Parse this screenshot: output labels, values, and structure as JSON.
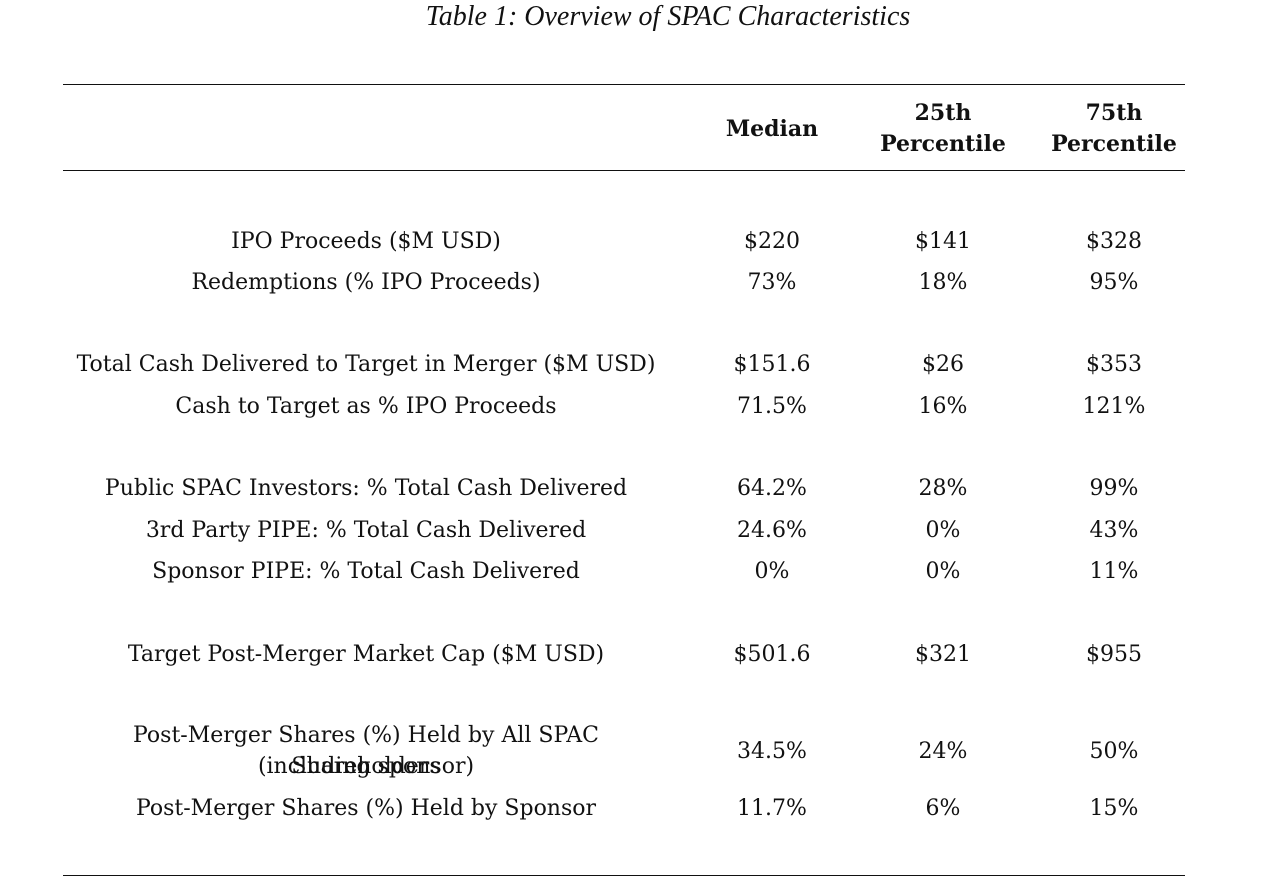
{
  "caption": "Table 1: Overview of SPAC Characteristics",
  "columns": {
    "median": "Median",
    "p25_line1": "25th",
    "p25_line2": "Percentile",
    "p75_line1": "75th",
    "p75_line2": "Percentile"
  },
  "rows": [
    {
      "label": "IPO Proceeds ($M USD)",
      "median": "$220",
      "p25": "$141",
      "p75": "$328"
    },
    {
      "label": "Redemptions (% IPO Proceeds)",
      "median": "73%",
      "p25": "18%",
      "p75": "95%"
    },
    {
      "label": "Total Cash Delivered to Target in Merger ($M USD)",
      "median": "$151.6",
      "p25": "$26",
      "p75": "$353"
    },
    {
      "label": "Cash to Target as % IPO Proceeds",
      "median": "71.5%",
      "p25": "16%",
      "p75": "121%"
    },
    {
      "label": "Public SPAC Investors: % Total Cash Delivered",
      "median": "64.2%",
      "p25": "28%",
      "p75": "99%"
    },
    {
      "label": "3rd Party PIPE: % Total Cash Delivered",
      "median": "24.6%",
      "p25": "0%",
      "p75": "43%"
    },
    {
      "label": "Sponsor PIPE: % Total Cash Delivered",
      "median": "0%",
      "p25": "0%",
      "p75": "11%"
    },
    {
      "label": "Target Post-Merger Market Cap ($M USD)",
      "median": "$501.6",
      "p25": "$321",
      "p75": "$955"
    },
    {
      "label": "Post-Merger Shares (%) Held by All SPAC Shareholders",
      "label_line2": "(including sponsor)",
      "median": "34.5%",
      "p25": "24%",
      "p75": "50%"
    },
    {
      "label": "Post-Merger Shares (%) Held by Sponsor",
      "median": "11.7%",
      "p25": "6%",
      "p75": "15%"
    }
  ]
}
